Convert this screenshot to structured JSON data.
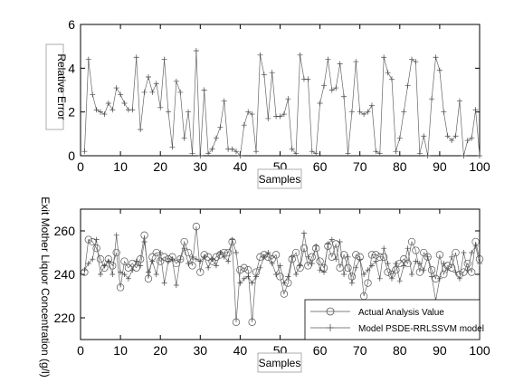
{
  "chart_data": [
    {
      "type": "line",
      "xlabel": "Samples",
      "ylabel": "Relative Error",
      "xlim": [
        0,
        100
      ],
      "ylim": [
        0,
        6
      ],
      "xticks": [
        "0",
        "10",
        "20",
        "30",
        "40",
        "50",
        "60",
        "70",
        "80",
        "90",
        "100"
      ],
      "yticks": [
        "0",
        "2",
        "4",
        "6"
      ],
      "grid": false,
      "series": [
        {
          "marker": "plus",
          "x": [
            1,
            2,
            3,
            4,
            5,
            6,
            7,
            8,
            9,
            10,
            11,
            12,
            13,
            14,
            15,
            16,
            17,
            18,
            19,
            20,
            21,
            22,
            23,
            24,
            25,
            26,
            27,
            28,
            29,
            30,
            31,
            32,
            33,
            34,
            35,
            36,
            37,
            38,
            39,
            40,
            41,
            42,
            43,
            44,
            45,
            46,
            47,
            48,
            49,
            50,
            51,
            52,
            53,
            54,
            55,
            56,
            57,
            58,
            59,
            60,
            61,
            62,
            63,
            64,
            65,
            66,
            67,
            68,
            69,
            70,
            71,
            72,
            73,
            74,
            75,
            76,
            77,
            78,
            79,
            80,
            81,
            82,
            83,
            84,
            85,
            86,
            87,
            88,
            89,
            90,
            91,
            92,
            93,
            94,
            95,
            96,
            97,
            98,
            99,
            100
          ],
          "values": [
            0.2,
            4.4,
            2.8,
            2.1,
            2.0,
            1.9,
            2.4,
            2.1,
            3.1,
            2.8,
            2.4,
            2.1,
            2.1,
            4.5,
            1.2,
            2.9,
            3.6,
            2.9,
            3.3,
            2.2,
            4.4,
            2.0,
            0.4,
            3.4,
            2.9,
            0.8,
            2.0,
            0.1,
            4.8,
            0.0,
            3.0,
            0.1,
            0.3,
            0.8,
            1.3,
            2.5,
            0.3,
            0.3,
            0.2,
            0.0,
            1.4,
            2.0,
            1.9,
            0.2,
            4.6,
            3.7,
            1.7,
            3.8,
            1.8,
            1.8,
            1.9,
            2.6,
            0.3,
            0.1,
            4.6,
            3.5,
            3.5,
            0.2,
            0.1,
            2.4,
            3.2,
            4.4,
            3.0,
            3.1,
            4.2,
            2.7,
            0.1,
            2.0,
            4.3,
            2.0,
            1.9,
            2.0,
            2.3,
            0.2,
            0.1,
            4.5,
            3.8,
            3.5,
            0.2,
            0.8,
            2.0,
            3.2,
            4.4,
            4.3,
            0.1,
            0.9,
            0.0,
            2.6,
            4.5,
            3.9,
            2.0,
            0.9,
            0.7,
            0.9,
            2.5,
            0.0,
            0.7,
            0.8,
            2.1,
            0.0
          ]
        }
      ]
    },
    {
      "type": "line",
      "xlabel": "Samples",
      "ylabel": "Exit Mother Liquor Concentration (g/l)",
      "xlim": [
        0,
        100
      ],
      "ylim": [
        210,
        270
      ],
      "xticks": [
        "0",
        "10",
        "20",
        "30",
        "40",
        "50",
        "60",
        "70",
        "80",
        "90",
        "100"
      ],
      "yticks": [
        "220",
        "240",
        "260"
      ],
      "grid": false,
      "legend_position": "bottom-right",
      "series": [
        {
          "name": "Actual Analysis Value",
          "marker": "circle",
          "x": [
            1,
            2,
            3,
            4,
            5,
            6,
            7,
            8,
            9,
            10,
            11,
            12,
            13,
            14,
            15,
            16,
            17,
            18,
            19,
            20,
            21,
            22,
            23,
            24,
            25,
            26,
            27,
            28,
            29,
            30,
            31,
            32,
            33,
            34,
            35,
            36,
            37,
            38,
            39,
            40,
            41,
            42,
            43,
            44,
            45,
            46,
            47,
            48,
            49,
            50,
            51,
            52,
            53,
            54,
            55,
            56,
            57,
            58,
            59,
            60,
            61,
            62,
            63,
            64,
            65,
            66,
            67,
            68,
            69,
            70,
            71,
            72,
            73,
            74,
            75,
            76,
            77,
            78,
            79,
            80,
            81,
            82,
            83,
            84,
            85,
            86,
            87,
            88,
            89,
            90,
            91,
            92,
            93,
            94,
            95,
            96,
            97,
            98,
            99,
            100
          ],
          "values": [
            241,
            256,
            255,
            252,
            247,
            243,
            247,
            244,
            250,
            234,
            246,
            243,
            245,
            243,
            247,
            258,
            238,
            248,
            250,
            246,
            248,
            247,
            248,
            245,
            247,
            255,
            250,
            244,
            262,
            241,
            249,
            248,
            246,
            248,
            249,
            250,
            250,
            255,
            218,
            242,
            243,
            242,
            218,
            241,
            248,
            249,
            248,
            247,
            249,
            239,
            231,
            236,
            247,
            250,
            243,
            252,
            244,
            248,
            252,
            246,
            243,
            253,
            248,
            254,
            243,
            249,
            243,
            239,
            249,
            248,
            230,
            236,
            249,
            249,
            248,
            248,
            241,
            240,
            242,
            245,
            247,
            245,
            255,
            251,
            241,
            250,
            248,
            242,
            238,
            249,
            240,
            244,
            243,
            250,
            240,
            241,
            245,
            241,
            255,
            247
          ]
        },
        {
          "name": "Model PSDE-RRLSSVM model",
          "marker": "plus",
          "x": [
            1,
            2,
            3,
            4,
            5,
            6,
            7,
            8,
            9,
            10,
            11,
            12,
            13,
            14,
            15,
            16,
            17,
            18,
            19,
            20,
            21,
            22,
            23,
            24,
            25,
            26,
            27,
            28,
            29,
            30,
            31,
            32,
            33,
            34,
            35,
            36,
            37,
            38,
            39,
            40,
            41,
            42,
            43,
            44,
            45,
            46,
            47,
            48,
            49,
            50,
            51,
            52,
            53,
            54,
            55,
            56,
            57,
            58,
            59,
            60,
            61,
            62,
            63,
            64,
            65,
            66,
            67,
            68,
            69,
            70,
            71,
            72,
            73,
            74,
            75,
            76,
            77,
            78,
            79,
            80,
            81,
            82,
            83,
            84,
            85,
            86,
            87,
            88,
            89,
            90,
            91,
            92,
            93,
            94,
            95,
            96,
            97,
            98,
            99,
            100
          ],
          "values": [
            242,
            245,
            247,
            256,
            240,
            244,
            246,
            240,
            258,
            241,
            240,
            238,
            242,
            246,
            244,
            255,
            241,
            246,
            240,
            250,
            236,
            246,
            247,
            235,
            247,
            252,
            245,
            248,
            247,
            246,
            248,
            243,
            247,
            244,
            250,
            248,
            246,
            256,
            250,
            236,
            238,
            239,
            236,
            239,
            243,
            248,
            250,
            245,
            240,
            244,
            236,
            239,
            248,
            240,
            244,
            259,
            248,
            245,
            253,
            242,
            241,
            254,
            256,
            247,
            255,
            240,
            248,
            236,
            243,
            247,
            240,
            242,
            244,
            246,
            238,
            252,
            245,
            238,
            245,
            237,
            244,
            252,
            240,
            246,
            245,
            242,
            248,
            239,
            228,
            238,
            245,
            242,
            248,
            241,
            238,
            250,
            242,
            250,
            253,
            245
          ]
        }
      ]
    }
  ]
}
